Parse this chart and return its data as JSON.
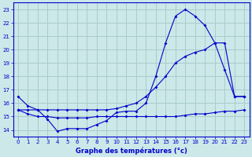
{
  "title": "Graphe des températures (°c)",
  "bg_color": "#cce8e8",
  "grid_color": "#aacccc",
  "line_color": "#0000cc",
  "xlim": [
    -0.5,
    23.5
  ],
  "ylim": [
    13.5,
    23.5
  ],
  "xticks": [
    0,
    1,
    2,
    3,
    4,
    5,
    6,
    7,
    8,
    9,
    10,
    11,
    12,
    13,
    14,
    15,
    16,
    17,
    18,
    19,
    20,
    21,
    22,
    23
  ],
  "yticks": [
    14,
    15,
    16,
    17,
    18,
    19,
    20,
    21,
    22,
    23
  ],
  "line1_x": [
    0,
    1,
    2,
    3,
    4,
    5,
    6,
    7,
    8,
    9,
    10,
    11,
    12,
    13,
    14,
    15,
    16,
    17,
    18,
    19,
    20,
    21,
    22,
    23
  ],
  "line1_y": [
    16.5,
    15.8,
    15.5,
    14.8,
    13.9,
    14.1,
    14.1,
    14.1,
    14.4,
    14.7,
    15.3,
    15.4,
    15.4,
    16.0,
    18.0,
    20.5,
    22.5,
    23.0,
    22.5,
    21.8,
    20.5,
    18.5,
    16.5,
    16.5
  ],
  "line2_x": [
    0,
    1,
    2,
    3,
    4,
    5,
    6,
    7,
    8,
    9,
    10,
    11,
    12,
    13,
    14,
    15,
    16,
    17,
    18,
    19,
    20,
    21,
    22,
    23
  ],
  "line2_y": [
    15.5,
    15.5,
    15.5,
    15.5,
    15.5,
    15.5,
    15.5,
    15.5,
    15.5,
    15.5,
    15.6,
    15.8,
    16.0,
    16.5,
    17.2,
    18.0,
    19.0,
    19.5,
    19.8,
    20.0,
    20.5,
    20.5,
    16.5,
    16.5
  ],
  "line3_x": [
    0,
    1,
    2,
    3,
    4,
    5,
    6,
    7,
    8,
    9,
    10,
    11,
    12,
    13,
    14,
    15,
    16,
    17,
    18,
    19,
    20,
    21,
    22,
    23
  ],
  "line3_y": [
    15.5,
    15.2,
    15.0,
    15.0,
    14.9,
    14.9,
    14.9,
    14.9,
    15.0,
    15.0,
    15.0,
    15.0,
    15.0,
    15.0,
    15.0,
    15.0,
    15.0,
    15.1,
    15.2,
    15.2,
    15.3,
    15.4,
    15.4,
    15.5
  ]
}
